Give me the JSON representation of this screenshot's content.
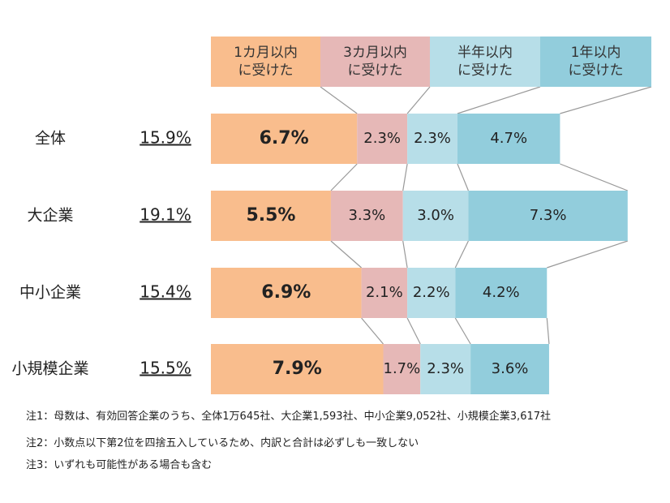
{
  "chart_data": {
    "type": "stacked-bar",
    "categories": [
      "全体",
      "大企業",
      "中小企業",
      "小規模企業"
    ],
    "totals": [
      15.9,
      19.1,
      15.4,
      15.5
    ],
    "total_labels": [
      "15.9%",
      "19.1%",
      "15.4%",
      "15.5%"
    ],
    "series": [
      {
        "name": "1カ月以内\nに受けた",
        "color": "#f9bd8d",
        "values": [
          6.7,
          5.5,
          6.9,
          7.9
        ],
        "value_labels": [
          "6.7%",
          "5.5%",
          "6.9%",
          "7.9%"
        ]
      },
      {
        "name": "3カ月以内\nに受けた",
        "color": "#e6b8b7",
        "values": [
          2.3,
          3.3,
          2.1,
          1.7
        ],
        "value_labels": [
          "2.3%",
          "3.3%",
          "2.1%",
          "1.7%"
        ]
      },
      {
        "name": "半年以内\nに受けた",
        "color": "#b7dee8",
        "values": [
          2.3,
          3.0,
          2.2,
          2.3
        ],
        "value_labels": [
          "2.3%",
          "3.0%",
          "2.2%",
          "2.3%"
        ]
      },
      {
        "name": "1年以内\nに受けた",
        "color": "#92cddc",
        "values": [
          4.7,
          7.3,
          4.2,
          3.6
        ],
        "value_labels": [
          "4.7%",
          "7.3%",
          "4.2%",
          "3.6%"
        ]
      }
    ],
    "notes": [
      "注1：母数は、有効回答企業のうち、全体1万645社、大企業1,593社、中小企業9,052社、小規模企業3,617社",
      "注2：小数点以下第2位を四捨五入しているため、内訳と合計は必ずしも一致しない",
      "注3：いずれも可能性がある場合も含む"
    ]
  }
}
